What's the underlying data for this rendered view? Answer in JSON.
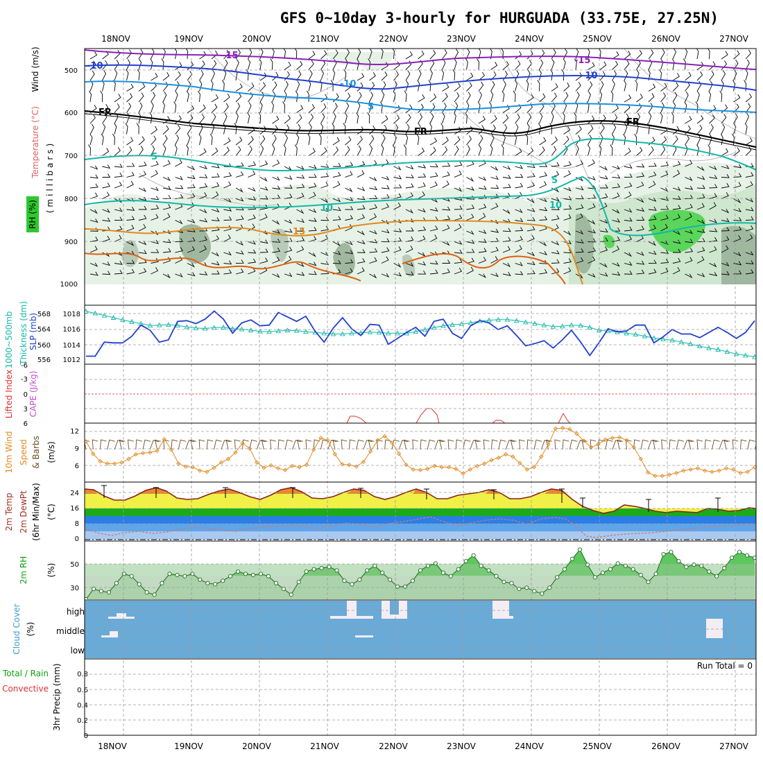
{
  "page": {
    "title": "GFS 0~10day 3-hourly for HURGUADA (33.75E, 27.25N)"
  },
  "axis": {
    "dates": [
      "18NOV",
      "19NOV",
      "20NOV",
      "21NOV",
      "22NOV",
      "23NOV",
      "24NOV",
      "25NOV",
      "26NOV",
      "27NOV"
    ]
  },
  "panels": {
    "upper": {
      "ylabel_wind": "Wind (m/s)",
      "ylabel_temp": "Temperature (°C)",
      "ylabel_rh": "RH (%)",
      "ylabel_unit": "(millibars)",
      "ticks": [
        "500",
        "600",
        "700",
        "800",
        "900",
        "1000"
      ],
      "labels": {
        "m15a": "-15",
        "m15b": "-15",
        "m10a": "-10",
        "m10b": "-10",
        "m10c": "-10",
        "m5": "5",
        "fr1": "FR",
        "fr2": "FR",
        "fr3": "FR",
        "p5a": "5",
        "p5b": "5",
        "p10a": "10",
        "p10b": "10",
        "p15": "15"
      }
    },
    "thickness": {
      "ylabel_left": "1000~500mb",
      "ylabel_left2": "Thickness (dm)",
      "ylabel_right": "SLP (mb)",
      "ticks_left": [
        "556",
        "560",
        "564",
        "568"
      ],
      "ticks_right": [
        "1012",
        "1014",
        "1016",
        "1018"
      ]
    },
    "lifted": {
      "ylabel_li": "Lifted Index",
      "ylabel_cape": "CAPE (J/kg)",
      "ticks": [
        "-6",
        "-3",
        "0",
        "3",
        "6"
      ]
    },
    "wind10": {
      "ylabel1": "10m Wind",
      "ylabel2": "Speed",
      "ylabel3": "& Barbs",
      "ylabel_unit": "(m/s)",
      "ticks": [
        "6",
        "9",
        "12"
      ]
    },
    "temp2m": {
      "ylabel1": "2m Temp",
      "ylabel2": "2m DewPt",
      "ylabel3": "(6hr Min/Max)",
      "ylabel_unit": "(°C)",
      "ticks": [
        "0",
        "8",
        "16",
        "24"
      ]
    },
    "rh2m": {
      "ylabel": "2m RH",
      "ylabel_unit": "(%)",
      "ticks": [
        "30",
        "50"
      ]
    },
    "cloud": {
      "ylabel": "Cloud Cover",
      "ylabel_unit": "(%)",
      "levels": [
        "high",
        "middle",
        "low"
      ]
    },
    "precip": {
      "ylabel1": "Total / Rain",
      "ylabel2": "Convective",
      "ylabel3": "3hr Precip (mm)",
      "ticks": [
        "0",
        "0.2",
        "0.4",
        "0.6",
        "0.8"
      ],
      "run_total": "Run Total = 0"
    }
  },
  "colors": {
    "purple": "#8a1fb8",
    "blue": "#2040d0",
    "lightblue": "#1a90e0",
    "teal": "#10b8a8",
    "orange": "#e08a20",
    "darkorange": "#e06010",
    "cloudbg": "#6aaad6",
    "green": "#2ec82e"
  },
  "chart_data": [
    {
      "type": "line",
      "title": "1000~500mb Thickness (dm) / SLP (mb)",
      "x_units": "3-hourly steps starting 17NOV 12Z",
      "series": [
        {
          "name": "SLP (mb)",
          "axis": "right",
          "values": [
            1012.3,
            1012.3,
            1014.2,
            1014.1,
            1014.1,
            1015.0,
            1016.5,
            1015.8,
            1014.2,
            1014.5,
            1017.0,
            1017.1,
            1016.7,
            1017.3,
            1018.4,
            1017.3,
            1015.4,
            1016.8,
            1017.2,
            1016.4,
            1016.5,
            1018.2,
            1017.6,
            1017.0,
            1017.7,
            1015.7,
            1014.2,
            1016.1,
            1017.5,
            1016.0,
            1015.1,
            1016.6,
            1016.5,
            1013.9,
            1014.7,
            1015.5,
            1016.2,
            1015.0,
            1017.0,
            1017.3,
            1015.4,
            1014.7,
            1016.4,
            1017.1,
            1016.8,
            1015.9,
            1016.4,
            1015.1,
            1013.7,
            1014.0,
            1014.4,
            1013.4,
            1014.5,
            1015.8,
            1014.2,
            1012.4,
            1014.1,
            1016.0,
            1015.6,
            1015.7,
            1016.5,
            1016.5,
            1014.1,
            1014.9,
            1015.9,
            1015.3,
            1015.3,
            1014.8,
            1015.5,
            1016.2,
            1015.5,
            1014.7,
            1015.5,
            1017.1
          ]
        },
        {
          "name": "Thickness (dm)",
          "axis": "left",
          "values": [
            568.7,
            568.2,
            567.6,
            567.0,
            566.4,
            565.9,
            565.4,
            564.9,
            565.0,
            565.1,
            564.9,
            564.5,
            564.2,
            564.1,
            564.3,
            564.4,
            564.0,
            563.9,
            563.6,
            563.3,
            563.2,
            563.4,
            563.6,
            563.5,
            563.2,
            563.0,
            562.8,
            562.6,
            562.6,
            562.8,
            562.9,
            563.1,
            563.0,
            562.8,
            562.8,
            562.8,
            563.2,
            563.8,
            564.3,
            564.8,
            565.1,
            565.3,
            565.6,
            566.1,
            566.3,
            566.5,
            566.5,
            566.2,
            565.8,
            565.4,
            565.0,
            564.6,
            564.7,
            565.0,
            564.9,
            564.4,
            563.6,
            563.4,
            563.1,
            562.8,
            562.5,
            562.0,
            561.5,
            561.2,
            560.9,
            560.4,
            559.9,
            559.3,
            558.8,
            558.4,
            557.8,
            557.2,
            556.8,
            556.4
          ]
        }
      ],
      "ylim_left": [
        555,
        570
      ],
      "ylim_right": [
        1011.5,
        1019
      ]
    },
    {
      "type": "line",
      "title": "10m Wind Speed (m/s)",
      "series": [
        {
          "name": "Speed (m/s)",
          "values": [
            9.6,
            7.5,
            6.2,
            5.8,
            5.8,
            6.0,
            6.6,
            7.4,
            7.6,
            7.7,
            8.0,
            10.0,
            8.2,
            5.8,
            5.3,
            5.2,
            4.6,
            4.4,
            5.1,
            6.0,
            6.6,
            7.7,
            9.3,
            8.4,
            6.0,
            5.1,
            5.5,
            5.0,
            4.7,
            5.4,
            5.2,
            5.6,
            8.2,
            10.2,
            9.8,
            7.4,
            5.7,
            5.6,
            5.3,
            6.1,
            7.9,
            9.8,
            10.5,
            9.4,
            7.5,
            5.6,
            4.8,
            4.7,
            4.9,
            5.4,
            5.2,
            5.2,
            4.9,
            4.1,
            4.8,
            5.4,
            5.8,
            6.4,
            6.8,
            7.4,
            7.0,
            5.9,
            4.8,
            5.2,
            7.0,
            9.1,
            11.8,
            11.9,
            11.7,
            10.9,
            9.7,
            8.6,
            9.1,
            9.9,
            10.2,
            10.3,
            9.8,
            8.6,
            6.6,
            4.3,
            3.7,
            3.7,
            3.9,
            4.2,
            4.6,
            4.8,
            5.0,
            4.6,
            4.4,
            4.6,
            5.0,
            4.8,
            4.2,
            4.4,
            5.2
          ]
        }
      ],
      "ylim": [
        3,
        12.5
      ]
    },
    {
      "type": "line",
      "title": "2m RH (%)",
      "series": [
        {
          "name": "2m RH (%)",
          "values": [
            22,
            31,
            29,
            28,
            36,
            44,
            42,
            35,
            28,
            26,
            36,
            44,
            43,
            42,
            44,
            39,
            36,
            35,
            38,
            42,
            46,
            44,
            43,
            44,
            42,
            36,
            31,
            26,
            37,
            46,
            48,
            49,
            50,
            47,
            38,
            35,
            39,
            47,
            51,
            45,
            39,
            33,
            33,
            38,
            47,
            51,
            53,
            45,
            42,
            48,
            55,
            60,
            51,
            47,
            42,
            37,
            36,
            31,
            32,
            29,
            27,
            32,
            41,
            48,
            57,
            65,
            52,
            41,
            45,
            48,
            53,
            51,
            48,
            43,
            37,
            44,
            61,
            63,
            55,
            50,
            52,
            51,
            46,
            42,
            49,
            58,
            63,
            60,
            58
          ]
        }
      ],
      "ylim": [
        22,
        70
      ]
    }
  ]
}
